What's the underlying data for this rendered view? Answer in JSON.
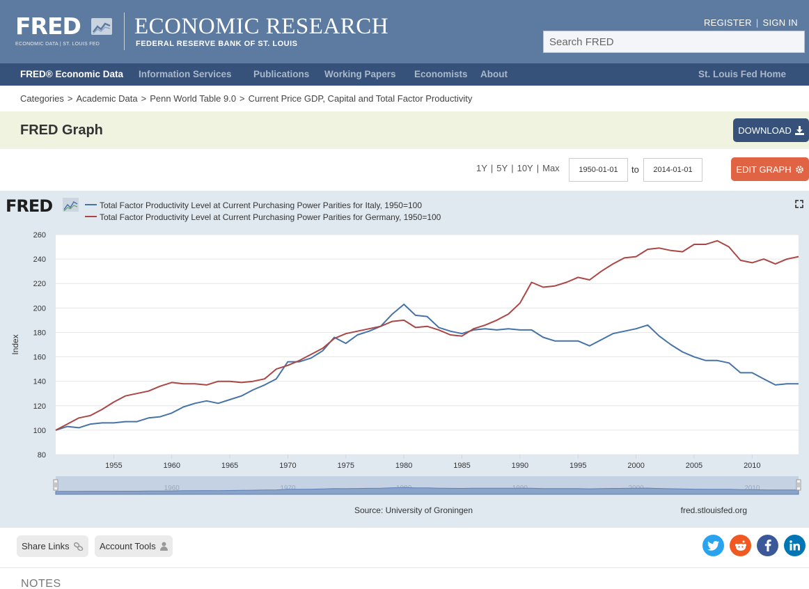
{
  "header": {
    "logo_word": "FRED",
    "logo_tagline": "ECONOMIC DATA | ST. LOUIS FED",
    "site_title": "ECONOMIC RESEARCH",
    "site_subtitle": "FEDERAL RESERVE BANK OF ST. LOUIS",
    "register_label": "REGISTER",
    "signin_label": "SIGN IN",
    "search_placeholder": "Search FRED"
  },
  "nav": {
    "items": [
      {
        "label": "FRED® Economic Data"
      },
      {
        "label": "Information Services"
      },
      {
        "label": "Publications"
      },
      {
        "label": "Working Papers"
      },
      {
        "label": "Economists"
      },
      {
        "label": "About"
      }
    ],
    "right_link": "St. Louis Fed Home"
  },
  "breadcrumb": [
    "Categories",
    "Academic Data",
    "Penn World Table 9.0",
    "Current Price GDP, Capital and Total Factor Productivity"
  ],
  "page": {
    "title": "FRED Graph",
    "download_label": "DOWNLOAD",
    "edit_graph_label": "EDIT GRAPH"
  },
  "controls": {
    "ranges": [
      "1Y",
      "5Y",
      "10Y",
      "Max"
    ],
    "start_date": "1950-01-01",
    "to_label": "to",
    "end_date": "2014-01-01"
  },
  "chart_data": {
    "type": "line",
    "title": "",
    "ylabel": "Index",
    "xlabel": "",
    "xlim": [
      1950,
      2014
    ],
    "ylim": [
      80,
      260
    ],
    "yticks": [
      80,
      100,
      120,
      140,
      160,
      180,
      200,
      220,
      240,
      260
    ],
    "xticks": [
      1955,
      1960,
      1965,
      1970,
      1975,
      1980,
      1985,
      1990,
      1995,
      2000,
      2005,
      2010
    ],
    "navigator_ticks": [
      1960,
      1970,
      1980,
      1990,
      2000,
      2010
    ],
    "x": [
      1950,
      1951,
      1952,
      1953,
      1954,
      1955,
      1956,
      1957,
      1958,
      1959,
      1960,
      1961,
      1962,
      1963,
      1964,
      1965,
      1966,
      1967,
      1968,
      1969,
      1970,
      1971,
      1972,
      1973,
      1974,
      1975,
      1976,
      1977,
      1978,
      1979,
      1980,
      1981,
      1982,
      1983,
      1984,
      1985,
      1986,
      1987,
      1988,
      1989,
      1990,
      1991,
      1992,
      1993,
      1994,
      1995,
      1996,
      1997,
      1998,
      1999,
      2000,
      2001,
      2002,
      2003,
      2004,
      2005,
      2006,
      2007,
      2008,
      2009,
      2010,
      2011,
      2012,
      2013,
      2014
    ],
    "series": [
      {
        "name": "Total Factor Productivity Level at Current Purchasing Power Parities for Italy, 1950=100",
        "color": "#4572a7",
        "values": [
          100,
          103,
          102,
          105,
          106,
          106,
          107,
          107,
          110,
          111,
          114,
          119,
          122,
          124,
          122,
          125,
          128,
          133,
          137,
          142,
          156,
          156,
          159,
          165,
          176,
          171,
          178,
          181,
          185,
          195,
          203,
          194,
          193,
          184,
          181,
          179,
          182,
          183,
          182,
          183,
          182,
          182,
          176,
          173,
          173,
          173,
          169,
          174,
          179,
          181,
          183,
          186,
          177,
          170,
          164,
          160,
          157,
          157,
          155,
          147,
          147,
          142,
          137,
          138,
          138
        ]
      },
      {
        "name": "Total Factor Productivity Level at Current Purchasing Power Parities for Germany, 1950=100",
        "color": "#aa4643",
        "values": [
          100,
          105,
          110,
          112,
          117,
          123,
          128,
          130,
          132,
          136,
          139,
          138,
          138,
          137,
          140,
          140,
          139,
          140,
          142,
          150,
          153,
          157,
          162,
          167,
          175,
          179,
          181,
          183,
          185,
          189,
          190,
          184,
          185,
          182,
          178,
          177,
          183,
          186,
          190,
          195,
          204,
          221,
          217,
          218,
          221,
          225,
          223,
          230,
          236,
          241,
          242,
          248,
          249,
          247,
          246,
          252,
          252,
          255,
          250,
          239,
          237,
          240,
          236,
          240,
          242
        ]
      }
    ],
    "source_label": "Source: University of Groningen",
    "site_label": "fred.stlouisfed.org"
  },
  "share": {
    "share_links_label": "Share Links",
    "account_tools_label": "Account Tools",
    "social_icons": [
      "twitter-icon",
      "reddit-icon",
      "facebook-icon",
      "linkedin-icon"
    ],
    "colors": {
      "twitter": "#2aa3ef",
      "reddit": "#f05a22",
      "facebook": "#3b5998",
      "linkedin": "#0077b5"
    }
  },
  "notes": {
    "heading": "NOTES"
  }
}
